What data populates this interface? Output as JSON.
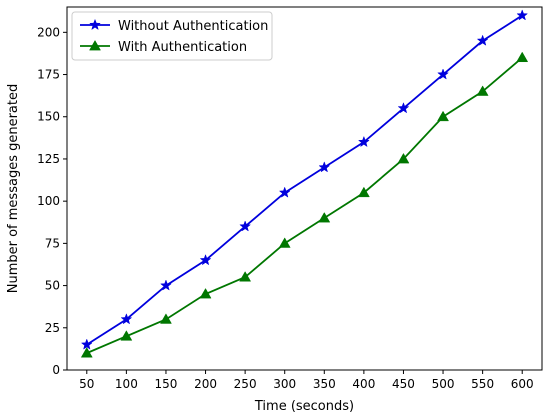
{
  "chart_data": {
    "type": "line",
    "xlabel": "Time (seconds)",
    "ylabel": "Number of messages generated",
    "x": [
      50,
      100,
      150,
      200,
      250,
      300,
      350,
      400,
      450,
      500,
      550,
      600
    ],
    "xticks": [
      "50",
      "100",
      "150",
      "200",
      "250",
      "300",
      "350",
      "400",
      "450",
      "500",
      "550",
      "600"
    ],
    "yticks": [
      "0",
      "25",
      "50",
      "75",
      "100",
      "125",
      "150",
      "175",
      "200"
    ],
    "ylim": [
      0,
      215
    ],
    "xlim": [
      25,
      625
    ],
    "grid": false,
    "legend_position": "top-left",
    "series": [
      {
        "name": "Without Authentication",
        "color": "#0000dd",
        "marker": "star",
        "values": [
          15,
          30,
          50,
          65,
          85,
          105,
          120,
          135,
          155,
          175,
          195,
          210
        ]
      },
      {
        "name": "With Authentication",
        "color": "#007700",
        "marker": "triangle",
        "values": [
          10,
          20,
          30,
          45,
          55,
          75,
          90,
          105,
          125,
          150,
          165,
          185
        ]
      }
    ]
  }
}
